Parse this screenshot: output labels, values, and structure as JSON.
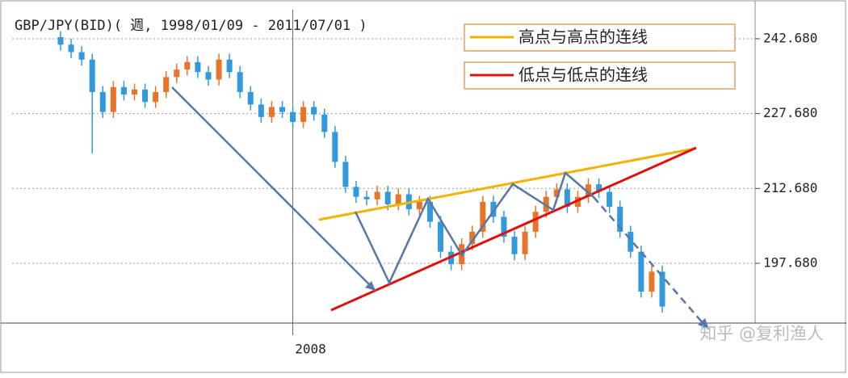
{
  "chart_data": {
    "type": "candlestick",
    "title": "GBP/JPY(BID)( 週, 1998/01/09 - 2011/07/01 )",
    "categories": [
      null,
      null,
      null,
      null,
      null,
      null,
      null,
      null,
      null,
      null,
      null,
      null,
      null,
      null,
      null,
      null,
      null,
      null,
      null,
      null,
      null,
      null,
      "2008",
      null,
      null,
      null,
      null,
      null,
      null,
      null,
      null,
      null,
      null,
      null,
      null,
      null,
      null,
      null,
      null,
      null,
      null,
      null,
      null,
      null,
      null,
      null,
      null,
      null,
      null,
      null,
      null,
      null,
      null,
      null,
      null,
      null,
      null,
      null
    ],
    "open": [
      243.0,
      241.5,
      240.0,
      238.5,
      232.0,
      228.0,
      233.0,
      231.5,
      232.5,
      230.0,
      232.0,
      235.0,
      236.5,
      238.0,
      236.0,
      234.5,
      238.5,
      236.0,
      232.0,
      229.5,
      227.0,
      229.0,
      228.0,
      226.0,
      229.0,
      227.5,
      224.0,
      218.0,
      213.0,
      211.0,
      210.5,
      212.0,
      209.5,
      211.5,
      208.5,
      210.0,
      206.0,
      200.0,
      197.5,
      201.5,
      204.0,
      210.0,
      207.0,
      203.0,
      199.5,
      204.0,
      208.0,
      211.0,
      212.5,
      209.0,
      211.0,
      213.5,
      212.0,
      209.0,
      204.0,
      200.0,
      192.0,
      196.0
    ],
    "high": [
      244.2,
      242.7,
      241.2,
      239.7,
      233.2,
      234.2,
      234.2,
      233.7,
      233.7,
      233.2,
      236.2,
      237.7,
      239.2,
      239.2,
      237.2,
      239.7,
      239.7,
      237.2,
      233.2,
      230.7,
      230.2,
      230.2,
      229.2,
      230.2,
      230.2,
      228.7,
      225.2,
      219.2,
      214.2,
      212.2,
      213.2,
      213.2,
      212.7,
      212.7,
      211.2,
      211.2,
      207.2,
      201.2,
      202.7,
      205.2,
      211.2,
      211.2,
      208.2,
      204.2,
      205.2,
      209.2,
      212.2,
      213.7,
      213.7,
      212.2,
      214.7,
      214.7,
      213.2,
      210.2,
      205.2,
      201.2,
      197.2,
      197.2
    ],
    "low": [
      240.3,
      238.8,
      237.3,
      219.7,
      226.8,
      226.8,
      230.3,
      230.3,
      228.8,
      228.8,
      230.8,
      233.8,
      235.3,
      234.8,
      233.3,
      233.3,
      234.8,
      230.8,
      228.3,
      225.8,
      225.8,
      226.8,
      224.8,
      224.8,
      226.3,
      222.8,
      216.8,
      211.8,
      209.8,
      209.3,
      209.3,
      208.3,
      208.3,
      207.3,
      207.3,
      204.8,
      198.8,
      196.3,
      196.3,
      200.3,
      202.8,
      205.8,
      201.8,
      198.3,
      198.3,
      202.8,
      206.8,
      209.8,
      207.8,
      207.8,
      209.8,
      210.8,
      207.8,
      202.8,
      198.8,
      190.8,
      190.8,
      187.8
    ],
    "close": [
      241.5,
      240.0,
      238.5,
      232.0,
      228.0,
      233.0,
      231.5,
      232.5,
      230.0,
      232.0,
      235.0,
      236.5,
      238.0,
      236.0,
      234.5,
      238.5,
      236.0,
      232.0,
      229.5,
      227.0,
      229.0,
      228.0,
      226.0,
      229.0,
      227.5,
      224.0,
      218.0,
      213.0,
      211.0,
      210.5,
      212.0,
      209.5,
      211.5,
      208.5,
      210.0,
      206.0,
      200.0,
      197.5,
      201.5,
      204.0,
      210.0,
      207.0,
      203.0,
      199.5,
      204.0,
      208.0,
      211.0,
      212.5,
      209.0,
      211.0,
      213.5,
      212.0,
      209.0,
      204.0,
      200.0,
      192.0,
      196.0,
      189.0
    ],
    "up_color": "#e8742a",
    "down_color": "#3399dd",
    "ylim": [
      185.7,
      248.5
    ],
    "yticks": [
      {
        "value": 197.68,
        "label": "197.680"
      },
      {
        "value": 212.68,
        "label": "212.680"
      },
      {
        "value": 227.68,
        "label": "227.680"
      },
      {
        "value": 242.68,
        "label": "242.680"
      }
    ],
    "grid": true,
    "legend": [
      {
        "name": "高点与高点的连线",
        "color": "#f0b400"
      },
      {
        "name": "低点与低点的连线",
        "color": "#e01010"
      }
    ],
    "watermark": "知乎 @复利渔人"
  }
}
